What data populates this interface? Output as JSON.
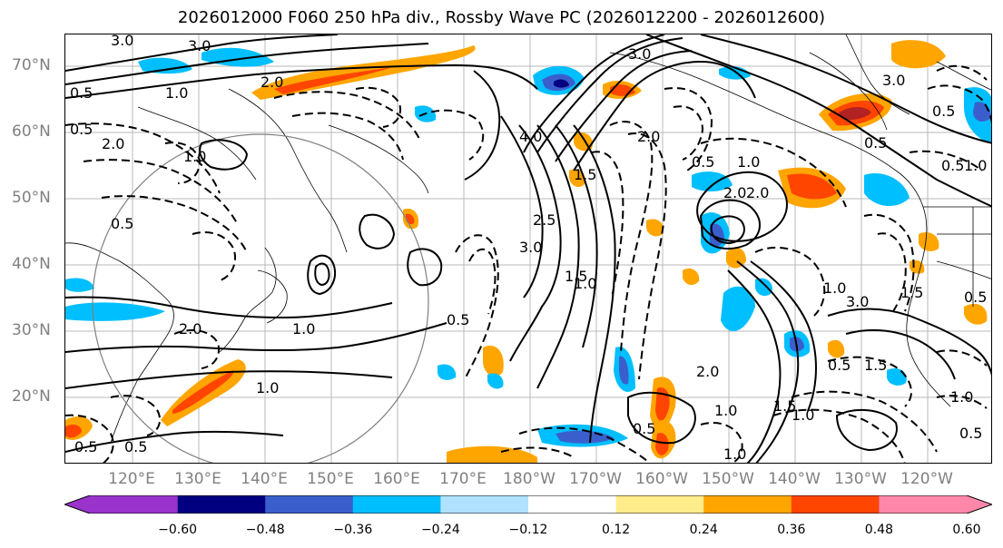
{
  "title": "2026012000 F060 250 hPa div., Rossby Wave PC (2026012200 - 2026012600)",
  "map": {
    "lat_labels": [
      "70°N",
      "60°N",
      "50°N",
      "40°N",
      "30°N",
      "20°N"
    ],
    "lon_labels": [
      "120°E",
      "130°E",
      "140°E",
      "150°E",
      "160°E",
      "170°E",
      "180°W",
      "170°W",
      "160°W",
      "150°W",
      "140°W",
      "130°W",
      "120°W"
    ],
    "contour_labels": [
      "3.0",
      "3.0",
      "3.0",
      "0.5",
      "1.0",
      "2.0",
      "1.0",
      "0.5",
      "2.0",
      "4.0",
      "2.0",
      "0.5",
      "1.5",
      "3.0",
      "1.0",
      "0.5",
      "2.5",
      "0.5",
      "1.0",
      "2.0",
      "1.0",
      "1.0",
      "2.0",
      "1.0",
      "0.5",
      "2.0",
      "1.0",
      "0.5",
      "1.5",
      "3.0",
      "0.5",
      "3.0",
      "0.5",
      "0.5",
      "0.5",
      "1.0",
      "1.5",
      "2.0",
      "1.0",
      "1.5",
      "0.5",
      "1.0",
      "1.0",
      "0.5",
      "1.5",
      "0.5"
    ]
  },
  "colorbar": {
    "tick_labels": [
      "−0.60",
      "−0.48",
      "−0.36",
      "−0.24",
      "−0.12",
      "0.12",
      "0.24",
      "0.36",
      "0.48",
      "0.60"
    ],
    "levels": [
      -0.6,
      -0.48,
      -0.36,
      -0.24,
      -0.12,
      0.12,
      0.24,
      0.36,
      0.48,
      0.6
    ],
    "colors": [
      "#9933cc",
      "#000080",
      "#3a5fcd",
      "#00bfff",
      "#b0e2ff",
      "#ffffff",
      "#ffec8b",
      "#ffa500",
      "#ff4500",
      "#b22222",
      "#ff88aa"
    ]
  }
}
